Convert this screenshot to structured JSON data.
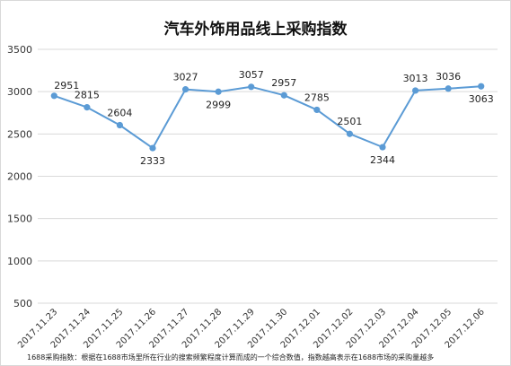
{
  "chart_data": {
    "type": "line",
    "title": "汽车外饰用品线上采购指数",
    "xlabel": "",
    "ylabel": "",
    "ylim": [
      500,
      3500
    ],
    "yticks": [
      500,
      1000,
      1500,
      2000,
      2500,
      3000,
      3500
    ],
    "grid": true,
    "legend": "none",
    "categories": [
      "2017.11.23",
      "2017.11.24",
      "2017.11.25",
      "2017.11.26",
      "2017.11.27",
      "2017.11.28",
      "2017.11.29",
      "2017.11.30",
      "2017.12.01",
      "2017.12.02",
      "2017.12.03",
      "2017.12.04",
      "2017.12.05",
      "2017.12.06"
    ],
    "series": [
      {
        "values": [
          2951,
          2815,
          2604,
          2333,
          3027,
          2999,
          3057,
          2957,
          2785,
          2501,
          2344,
          3013,
          3036,
          3063
        ],
        "color": "#5b9bd5"
      }
    ],
    "footnote": "1688采购指数：根据在1688市场里所在行业的搜索频繁程度计算而成的一个综合数值，指数越高表示在1688市场的采购量越多"
  }
}
